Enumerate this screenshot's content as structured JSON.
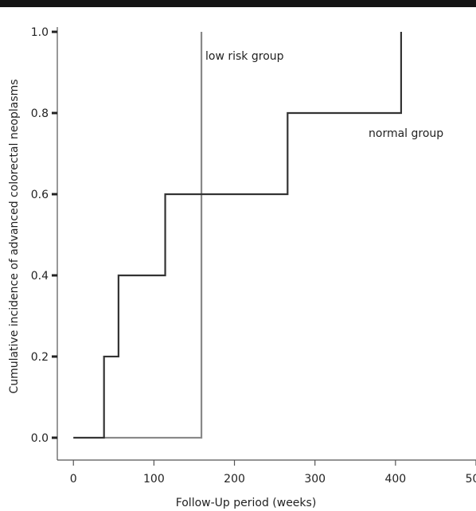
{
  "chart_data": {
    "type": "line",
    "title": "",
    "xlabel": "Follow-Up period (weeks)",
    "ylabel": "Cumulative incidence of advanced colorectal neoplasms",
    "xlim": [
      -20,
      500
    ],
    "ylim": [
      -0.055,
      1.0
    ],
    "x_ticks": [
      0,
      100,
      200,
      300,
      400,
      500
    ],
    "y_ticks": [
      0.0,
      0.2,
      0.4,
      0.6,
      0.8,
      1.0
    ],
    "x_tick_labels": [
      "0",
      "100",
      "200",
      "300",
      "400",
      "500"
    ],
    "y_tick_labels": [
      "0.0",
      "0.2",
      "0.4",
      "0.6",
      "0.8",
      "1.0"
    ],
    "grid": false,
    "legend": "none",
    "series": [
      {
        "name": "normal group",
        "step": true,
        "color": "#333333",
        "x": [
          0,
          38,
          56,
          114,
          266,
          407,
          407
        ],
        "y": [
          0.0,
          0.2,
          0.4,
          0.6,
          0.8,
          0.8,
          1.0
        ]
      },
      {
        "name": "low risk group",
        "step": true,
        "color": "#888888",
        "x": [
          0,
          159,
          159
        ],
        "y": [
          0.0,
          0.0,
          1.0
        ]
      }
    ],
    "annotations": [
      {
        "text": "low risk group",
        "series": "low risk group"
      },
      {
        "text": "normal group",
        "series": "normal group"
      }
    ]
  }
}
